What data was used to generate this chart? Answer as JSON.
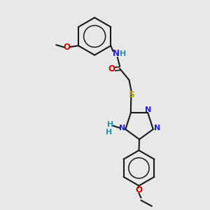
{
  "bg_color": "#e8e8e8",
  "bond_color": "#1a1a1a",
  "n_color": "#2222cc",
  "o_color": "#cc0000",
  "s_color": "#bbaa00",
  "nh_color": "#2299aa",
  "figsize": [
    3.0,
    3.0
  ],
  "dpi": 100,
  "xlim": [
    -1.0,
    9.0
  ],
  "ylim": [
    -0.5,
    9.5
  ]
}
